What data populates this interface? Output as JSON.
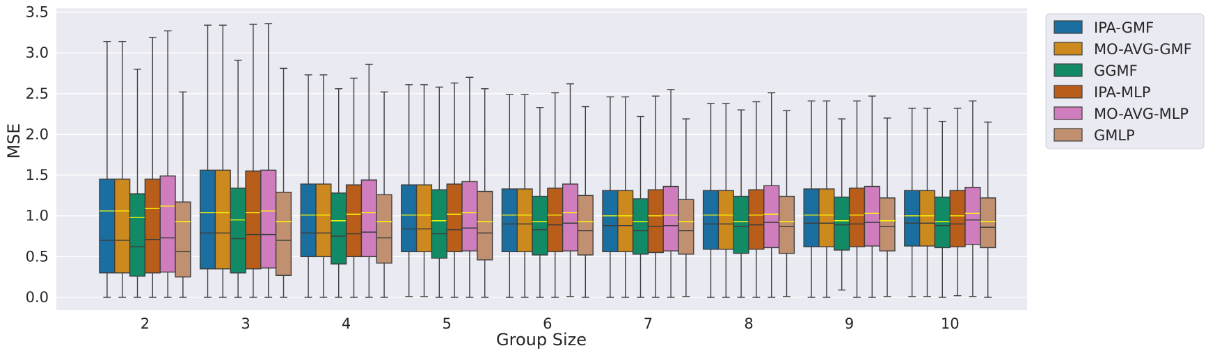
{
  "chart_data": {
    "type": "box",
    "title": "",
    "xlabel": "Group Size",
    "ylabel": "MSE",
    "ylim": [
      -0.15,
      3.5
    ],
    "yticks": [
      0.0,
      0.5,
      1.0,
      1.5,
      2.0,
      2.5,
      3.0,
      3.5
    ],
    "ytick_labels": [
      "0.0",
      "0.5",
      "1.0",
      "1.5",
      "2.0",
      "2.5",
      "3.0",
      "3.5"
    ],
    "categories": [
      "2",
      "3",
      "4",
      "5",
      "6",
      "7",
      "8",
      "9",
      "10"
    ],
    "grid": true,
    "legend_position": "outside-right-top",
    "series": [
      {
        "name": "IPA-GMF",
        "color": "#1a6fa0",
        "stats": [
          {
            "min": 0.0,
            "q1": 0.3,
            "median": 0.7,
            "q3": 1.45,
            "max": 3.14,
            "mean": 1.06
          },
          {
            "min": 0.0,
            "q1": 0.35,
            "median": 0.79,
            "q3": 1.56,
            "max": 3.34,
            "mean": 1.04
          },
          {
            "min": 0.0,
            "q1": 0.5,
            "median": 0.79,
            "q3": 1.39,
            "max": 2.73,
            "mean": 1.01
          },
          {
            "min": 0.01,
            "q1": 0.56,
            "median": 0.84,
            "q3": 1.38,
            "max": 2.61,
            "mean": 1.01
          },
          {
            "min": 0.0,
            "q1": 0.56,
            "median": 0.9,
            "q3": 1.33,
            "max": 2.49,
            "mean": 1.01
          },
          {
            "min": 0.0,
            "q1": 0.56,
            "median": 0.88,
            "q3": 1.31,
            "max": 2.46,
            "mean": 1.0
          },
          {
            "min": 0.0,
            "q1": 0.59,
            "median": 0.9,
            "q3": 1.31,
            "max": 2.38,
            "mean": 1.01
          },
          {
            "min": 0.0,
            "q1": 0.62,
            "median": 0.91,
            "q3": 1.33,
            "max": 2.41,
            "mean": 1.01
          },
          {
            "min": 0.01,
            "q1": 0.63,
            "median": 0.91,
            "q3": 1.31,
            "max": 2.32,
            "mean": 1.0
          }
        ]
      },
      {
        "name": "MO-AVG-GMF",
        "color": "#cc8a1e",
        "stats": [
          {
            "min": 0.0,
            "q1": 0.3,
            "median": 0.7,
            "q3": 1.45,
            "max": 3.14,
            "mean": 1.06
          },
          {
            "min": 0.0,
            "q1": 0.35,
            "median": 0.79,
            "q3": 1.56,
            "max": 3.34,
            "mean": 1.04
          },
          {
            "min": 0.0,
            "q1": 0.5,
            "median": 0.79,
            "q3": 1.39,
            "max": 2.73,
            "mean": 1.01
          },
          {
            "min": 0.01,
            "q1": 0.56,
            "median": 0.84,
            "q3": 1.38,
            "max": 2.61,
            "mean": 1.01
          },
          {
            "min": 0.0,
            "q1": 0.56,
            "median": 0.9,
            "q3": 1.33,
            "max": 2.49,
            "mean": 1.01
          },
          {
            "min": 0.0,
            "q1": 0.56,
            "median": 0.88,
            "q3": 1.31,
            "max": 2.46,
            "mean": 1.0
          },
          {
            "min": 0.0,
            "q1": 0.59,
            "median": 0.9,
            "q3": 1.31,
            "max": 2.38,
            "mean": 1.01
          },
          {
            "min": 0.0,
            "q1": 0.62,
            "median": 0.91,
            "q3": 1.33,
            "max": 2.41,
            "mean": 1.01
          },
          {
            "min": 0.01,
            "q1": 0.63,
            "median": 0.91,
            "q3": 1.31,
            "max": 2.32,
            "mean": 1.0
          }
        ]
      },
      {
        "name": "GGMF",
        "color": "#138a66",
        "stats": [
          {
            "min": 0.0,
            "q1": 0.26,
            "median": 0.62,
            "q3": 1.27,
            "max": 2.8,
            "mean": 0.98
          },
          {
            "min": 0.0,
            "q1": 0.3,
            "median": 0.72,
            "q3": 1.34,
            "max": 2.91,
            "mean": 0.95
          },
          {
            "min": 0.0,
            "q1": 0.41,
            "median": 0.75,
            "q3": 1.28,
            "max": 2.56,
            "mean": 0.94
          },
          {
            "min": 0.0,
            "q1": 0.48,
            "median": 0.78,
            "q3": 1.32,
            "max": 2.58,
            "mean": 0.94
          },
          {
            "min": 0.0,
            "q1": 0.52,
            "median": 0.83,
            "q3": 1.24,
            "max": 2.33,
            "mean": 0.93
          },
          {
            "min": 0.0,
            "q1": 0.53,
            "median": 0.82,
            "q3": 1.21,
            "max": 2.22,
            "mean": 0.93
          },
          {
            "min": 0.0,
            "q1": 0.54,
            "median": 0.87,
            "q3": 1.24,
            "max": 2.3,
            "mean": 0.93
          },
          {
            "min": 0.09,
            "q1": 0.58,
            "median": 0.89,
            "q3": 1.23,
            "max": 2.19,
            "mean": 0.94
          },
          {
            "min": 0.0,
            "q1": 0.61,
            "median": 0.88,
            "q3": 1.23,
            "max": 2.16,
            "mean": 0.93
          }
        ]
      },
      {
        "name": "IPA-MLP",
        "color": "#b85d1a",
        "stats": [
          {
            "min": 0.0,
            "q1": 0.3,
            "median": 0.71,
            "q3": 1.45,
            "max": 3.19,
            "mean": 1.09
          },
          {
            "min": 0.0,
            "q1": 0.35,
            "median": 0.77,
            "q3": 1.55,
            "max": 3.35,
            "mean": 1.04
          },
          {
            "min": 0.0,
            "q1": 0.5,
            "median": 0.78,
            "q3": 1.38,
            "max": 2.69,
            "mean": 1.02
          },
          {
            "min": 0.0,
            "q1": 0.56,
            "median": 0.83,
            "q3": 1.39,
            "max": 2.63,
            "mean": 1.02
          },
          {
            "min": 0.0,
            "q1": 0.56,
            "median": 0.89,
            "q3": 1.34,
            "max": 2.51,
            "mean": 1.01
          },
          {
            "min": 0.0,
            "q1": 0.55,
            "median": 0.87,
            "q3": 1.32,
            "max": 2.47,
            "mean": 1.0
          },
          {
            "min": 0.0,
            "q1": 0.59,
            "median": 0.89,
            "q3": 1.32,
            "max": 2.4,
            "mean": 1.01
          },
          {
            "min": 0.0,
            "q1": 0.62,
            "median": 0.9,
            "q3": 1.34,
            "max": 2.41,
            "mean": 1.01
          },
          {
            "min": 0.02,
            "q1": 0.62,
            "median": 0.9,
            "q3": 1.31,
            "max": 2.32,
            "mean": 1.0
          }
        ]
      },
      {
        "name": "MO-AVG-MLP",
        "color": "#cf7dbd",
        "stats": [
          {
            "min": 0.0,
            "q1": 0.31,
            "median": 0.73,
            "q3": 1.49,
            "max": 3.27,
            "mean": 1.12
          },
          {
            "min": 0.0,
            "q1": 0.36,
            "median": 0.77,
            "q3": 1.56,
            "max": 3.36,
            "mean": 1.06
          },
          {
            "min": 0.0,
            "q1": 0.5,
            "median": 0.8,
            "q3": 1.44,
            "max": 2.86,
            "mean": 1.04
          },
          {
            "min": 0.0,
            "q1": 0.57,
            "median": 0.85,
            "q3": 1.42,
            "max": 2.7,
            "mean": 1.04
          },
          {
            "min": 0.01,
            "q1": 0.57,
            "median": 0.91,
            "q3": 1.39,
            "max": 2.62,
            "mean": 1.04
          },
          {
            "min": 0.0,
            "q1": 0.57,
            "median": 0.88,
            "q3": 1.36,
            "max": 2.55,
            "mean": 1.01
          },
          {
            "min": 0.0,
            "q1": 0.61,
            "median": 0.92,
            "q3": 1.37,
            "max": 2.51,
            "mean": 1.02
          },
          {
            "min": 0.0,
            "q1": 0.63,
            "median": 0.92,
            "q3": 1.36,
            "max": 2.47,
            "mean": 1.03
          },
          {
            "min": 0.01,
            "q1": 0.65,
            "median": 0.95,
            "q3": 1.35,
            "max": 2.41,
            "mean": 1.03
          }
        ]
      },
      {
        "name": "GMLP",
        "color": "#c09070",
        "stats": [
          {
            "min": 0.0,
            "q1": 0.25,
            "median": 0.56,
            "q3": 1.17,
            "max": 2.52,
            "mean": 0.93
          },
          {
            "min": 0.0,
            "q1": 0.27,
            "median": 0.7,
            "q3": 1.29,
            "max": 2.81,
            "mean": 0.93
          },
          {
            "min": 0.0,
            "q1": 0.42,
            "median": 0.73,
            "q3": 1.26,
            "max": 2.52,
            "mean": 0.93
          },
          {
            "min": 0.0,
            "q1": 0.46,
            "median": 0.79,
            "q3": 1.3,
            "max": 2.56,
            "mean": 0.93
          },
          {
            "min": 0.0,
            "q1": 0.52,
            "median": 0.82,
            "q3": 1.25,
            "max": 2.34,
            "mean": 0.93
          },
          {
            "min": 0.01,
            "q1": 0.53,
            "median": 0.82,
            "q3": 1.2,
            "max": 2.19,
            "mean": 0.93
          },
          {
            "min": 0.01,
            "q1": 0.54,
            "median": 0.87,
            "q3": 1.24,
            "max": 2.29,
            "mean": 0.93
          },
          {
            "min": 0.01,
            "q1": 0.57,
            "median": 0.87,
            "q3": 1.22,
            "max": 2.2,
            "mean": 0.94
          },
          {
            "min": 0.0,
            "q1": 0.61,
            "median": 0.86,
            "q3": 1.22,
            "max": 2.15,
            "mean": 0.93
          }
        ]
      }
    ]
  }
}
